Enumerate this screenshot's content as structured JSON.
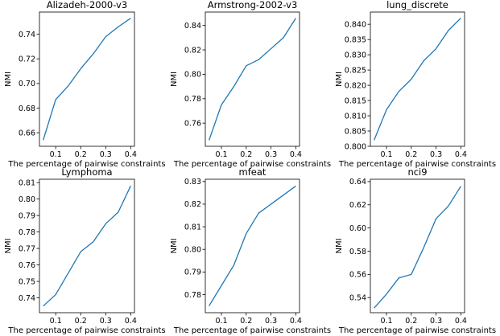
{
  "chart_data": [
    {
      "type": "line",
      "title": "Alizadeh-2000-v3",
      "xlabel": "The percentage of pairwise constraints",
      "ylabel": "NMI",
      "x": [
        0.05,
        0.1,
        0.15,
        0.2,
        0.25,
        0.3,
        0.35,
        0.4
      ],
      "series": [
        {
          "values": [
            0.654,
            0.687,
            0.698,
            0.712,
            0.724,
            0.738,
            0.746,
            0.753
          ]
        }
      ],
      "xlim": [
        0.035,
        0.415
      ],
      "ylim": [
        0.649,
        0.758
      ],
      "xticks": [
        0.1,
        0.2,
        0.3,
        0.4
      ],
      "xtick_labels": [
        "0.1",
        "0.2",
        "0.3",
        "0.4"
      ],
      "yticks": [
        0.66,
        0.68,
        0.7,
        0.72,
        0.74
      ],
      "ytick_labels": [
        "0.66",
        "0.68",
        "0.70",
        "0.72",
        "0.74"
      ],
      "grid": false,
      "color": "#1f77b4"
    },
    {
      "type": "line",
      "title": "Armstrong-2002-v3",
      "xlabel": "The percentage of pairwise constraints",
      "ylabel": "NMI",
      "x": [
        0.05,
        0.1,
        0.15,
        0.2,
        0.25,
        0.3,
        0.35,
        0.4
      ],
      "series": [
        {
          "values": [
            0.746,
            0.775,
            0.79,
            0.807,
            0.812,
            0.821,
            0.83,
            0.846
          ]
        }
      ],
      "xlim": [
        0.035,
        0.415
      ],
      "ylim": [
        0.741,
        0.851
      ],
      "xticks": [
        0.1,
        0.2,
        0.3,
        0.4
      ],
      "xtick_labels": [
        "0.1",
        "0.2",
        "0.3",
        "0.4"
      ],
      "yticks": [
        0.76,
        0.78,
        0.8,
        0.82,
        0.84
      ],
      "ytick_labels": [
        "0.76",
        "0.78",
        "0.80",
        "0.82",
        "0.84"
      ],
      "grid": false,
      "color": "#1f77b4"
    },
    {
      "type": "line",
      "title": "lung_discrete",
      "xlabel": "The percentage of pairwise constraints",
      "ylabel": "NMI",
      "x": [
        0.05,
        0.1,
        0.15,
        0.2,
        0.25,
        0.3,
        0.35,
        0.4
      ],
      "series": [
        {
          "values": [
            0.802,
            0.812,
            0.818,
            0.822,
            0.828,
            0.832,
            0.838,
            0.842
          ]
        }
      ],
      "xlim": [
        0.035,
        0.415
      ],
      "ylim": [
        0.8,
        0.844
      ],
      "xticks": [
        0.1,
        0.2,
        0.3,
        0.4
      ],
      "xtick_labels": [
        "0.1",
        "0.2",
        "0.3",
        "0.4"
      ],
      "yticks": [
        0.8,
        0.805,
        0.81,
        0.815,
        0.82,
        0.825,
        0.83,
        0.835,
        0.84
      ],
      "ytick_labels": [
        "0.800",
        "0.805",
        "0.810",
        "0.815",
        "0.820",
        "0.825",
        "0.830",
        "0.835",
        "0.840"
      ],
      "grid": false,
      "color": "#1f77b4"
    },
    {
      "type": "line",
      "title": "Lymphoma",
      "xlabel": "The percentage of pairwise constraints",
      "ylabel": "NMI",
      "x": [
        0.05,
        0.1,
        0.15,
        0.2,
        0.25,
        0.3,
        0.35,
        0.4
      ],
      "series": [
        {
          "values": [
            0.735,
            0.742,
            0.755,
            0.768,
            0.774,
            0.785,
            0.792,
            0.808
          ]
        }
      ],
      "xlim": [
        0.035,
        0.415
      ],
      "ylim": [
        0.731,
        0.812
      ],
      "xticks": [
        0.1,
        0.2,
        0.3,
        0.4
      ],
      "xtick_labels": [
        "0.1",
        "0.2",
        "0.3",
        "0.4"
      ],
      "yticks": [
        0.74,
        0.75,
        0.76,
        0.77,
        0.78,
        0.79,
        0.8,
        0.81
      ],
      "ytick_labels": [
        "0.74",
        "0.75",
        "0.76",
        "0.77",
        "0.78",
        "0.79",
        "0.80",
        "0.81"
      ],
      "grid": false,
      "color": "#1f77b4"
    },
    {
      "type": "line",
      "title": "mfeat",
      "xlabel": "The percentage of pairwise constraints",
      "ylabel": "NMI",
      "x": [
        0.05,
        0.1,
        0.15,
        0.2,
        0.25,
        0.3,
        0.35,
        0.4
      ],
      "series": [
        {
          "values": [
            0.775,
            0.784,
            0.793,
            0.807,
            0.816,
            0.82,
            0.824,
            0.828
          ]
        }
      ],
      "xlim": [
        0.035,
        0.415
      ],
      "ylim": [
        0.772,
        0.831
      ],
      "xticks": [
        0.1,
        0.2,
        0.3,
        0.4
      ],
      "xtick_labels": [
        "0.1",
        "0.2",
        "0.3",
        "0.4"
      ],
      "yticks": [
        0.78,
        0.79,
        0.8,
        0.81,
        0.82,
        0.83
      ],
      "ytick_labels": [
        "0.78",
        "0.79",
        "0.80",
        "0.81",
        "0.82",
        "0.83"
      ],
      "grid": false,
      "color": "#1f77b4"
    },
    {
      "type": "line",
      "title": "nci9",
      "xlabel": "The percentage of pairwise constraints",
      "ylabel": "NMI",
      "x": [
        0.05,
        0.1,
        0.15,
        0.2,
        0.25,
        0.3,
        0.35,
        0.4
      ],
      "series": [
        {
          "values": [
            0.531,
            0.543,
            0.557,
            0.56,
            0.583,
            0.608,
            0.619,
            0.636
          ]
        }
      ],
      "xlim": [
        0.035,
        0.415
      ],
      "ylim": [
        0.527,
        0.642
      ],
      "xticks": [
        0.1,
        0.2,
        0.3,
        0.4
      ],
      "xtick_labels": [
        "0.1",
        "0.2",
        "0.3",
        "0.4"
      ],
      "yticks": [
        0.54,
        0.56,
        0.58,
        0.6,
        0.62,
        0.64
      ],
      "ytick_labels": [
        "0.54",
        "0.56",
        "0.58",
        "0.60",
        "0.62",
        "0.64"
      ],
      "grid": false,
      "color": "#1f77b4"
    }
  ]
}
